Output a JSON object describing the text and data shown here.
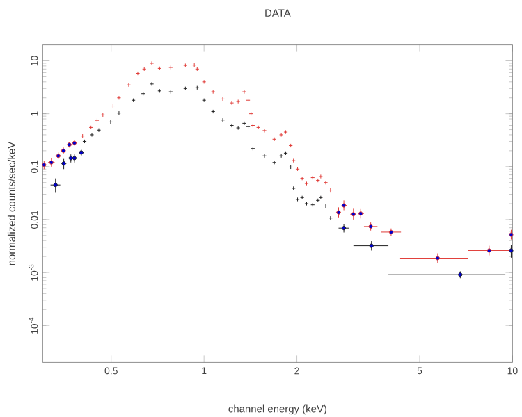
{
  "chart_data": {
    "type": "scatter",
    "title": "DATA",
    "xlabel": "channel energy (keV)",
    "ylabel": "normalized counts/sec/keV",
    "log": "xy",
    "xlim": [
      0.3,
      10
    ],
    "ylim": [
      2e-05,
      20
    ],
    "xticks": [
      0.5,
      1,
      2,
      5,
      10
    ],
    "yticks": [
      {
        "value": 0.0001,
        "label": "10$^{-4}$"
      },
      {
        "value": 0.001,
        "label": "10$^{-3}$"
      },
      0.01,
      0.1,
      1,
      10
    ],
    "marker": "cross",
    "grid": false,
    "legend": false,
    "series": [
      {
        "color": "#e03a36",
        "x": [
          0.303,
          0.32,
          0.337,
          0.35,
          0.366,
          0.38,
          0.404,
          0.43,
          0.45,
          0.47,
          0.507,
          0.53,
          0.57,
          0.61,
          0.64,
          0.677,
          0.718,
          0.78,
          0.87,
          0.93,
          0.95,
          1.0,
          1.07,
          1.15,
          1.23,
          1.29,
          1.35,
          1.39,
          1.42,
          1.44,
          1.5,
          1.57,
          1.69,
          1.78,
          1.84,
          1.91,
          1.95,
          2.01,
          2.08,
          2.15,
          2.25,
          2.34,
          2.39,
          2.48,
          2.57,
          2.73,
          2.84,
          3.05,
          3.22,
          3.47,
          4.04,
          5.72,
          8.4,
          9.9
        ],
        "values": [
          0.108,
          0.12,
          0.16,
          0.2,
          0.26,
          0.28,
          0.38,
          0.55,
          0.75,
          0.95,
          1.4,
          2.0,
          3.5,
          5.8,
          7.0,
          9.0,
          7.2,
          7.5,
          8.2,
          8.3,
          7.0,
          4.0,
          2.6,
          1.9,
          1.6,
          1.7,
          2.6,
          1.8,
          1.0,
          0.6,
          0.55,
          0.48,
          0.33,
          0.4,
          0.45,
          0.25,
          0.13,
          0.09,
          0.06,
          0.048,
          0.062,
          0.055,
          0.065,
          0.05,
          0.036,
          0.0136,
          0.0185,
          0.0126,
          0.013,
          0.0074,
          0.0058,
          0.00186,
          0.0026,
          0.0052
        ],
        "xerrors": [
          [
            0.3,
            0.307
          ],
          [
            0.312,
            0.328
          ],
          [
            0.33,
            0.344
          ],
          [
            0.343,
            0.357
          ],
          [
            0.359,
            0.373
          ],
          [
            0.373,
            0.387
          ],
          null,
          null,
          null,
          null,
          null,
          null,
          null,
          null,
          null,
          null,
          null,
          null,
          null,
          null,
          null,
          null,
          null,
          null,
          null,
          null,
          null,
          null,
          null,
          null,
          null,
          null,
          null,
          null,
          null,
          null,
          null,
          null,
          null,
          null,
          null,
          null,
          null,
          null,
          null,
          [
            2.68,
            2.78
          ],
          [
            2.79,
            2.9
          ],
          [
            2.98,
            3.1
          ],
          [
            3.16,
            3.3
          ],
          [
            3.3,
            3.65
          ],
          [
            3.75,
            4.35
          ],
          [
            4.3,
            7.17
          ],
          [
            7.17,
            9.9
          ],
          [
            9.8,
            10
          ]
        ],
        "errors": [
          [
            0.09,
            0.13
          ],
          [
            0.1,
            0.145
          ],
          [
            0.14,
            0.185
          ],
          [
            0.175,
            0.23
          ],
          [
            0.23,
            0.29
          ],
          [
            0.25,
            0.31
          ],
          null,
          null,
          null,
          null,
          null,
          null,
          null,
          null,
          null,
          null,
          null,
          null,
          null,
          null,
          null,
          null,
          null,
          null,
          null,
          null,
          null,
          null,
          null,
          null,
          null,
          null,
          null,
          null,
          null,
          null,
          null,
          null,
          null,
          null,
          null,
          null,
          null,
          null,
          null,
          [
            0.011,
            0.017
          ],
          [
            0.015,
            0.023
          ],
          [
            0.01,
            0.016
          ],
          [
            0.0105,
            0.0158
          ],
          [
            0.0062,
            0.0088
          ],
          [
            0.0049,
            0.0068
          ],
          [
            0.0015,
            0.0023
          ],
          [
            0.0021,
            0.0032
          ],
          [
            0.0042,
            0.0064
          ]
        ]
      },
      {
        "color": "#202020",
        "x": [
          0.33,
          0.351,
          0.37,
          0.38,
          0.4,
          0.41,
          0.433,
          0.456,
          0.498,
          0.53,
          0.59,
          0.635,
          0.677,
          0.718,
          0.78,
          0.87,
          0.95,
          1.0,
          1.07,
          1.15,
          1.23,
          1.29,
          1.35,
          1.39,
          1.44,
          1.57,
          1.69,
          1.78,
          1.84,
          1.91,
          1.95,
          2.01,
          2.08,
          2.15,
          2.25,
          2.34,
          2.39,
          2.48,
          2.57,
          2.84,
          3.49,
          6.77,
          9.9
        ],
        "values": [
          0.045,
          0.115,
          0.145,
          0.145,
          0.185,
          0.3,
          0.4,
          0.49,
          0.7,
          1.03,
          1.8,
          2.4,
          3.65,
          2.7,
          2.6,
          3.0,
          3.1,
          1.8,
          1.1,
          0.76,
          0.6,
          0.54,
          0.66,
          0.57,
          0.22,
          0.16,
          0.12,
          0.16,
          0.18,
          0.098,
          0.039,
          0.024,
          0.026,
          0.02,
          0.019,
          0.023,
          0.026,
          0.018,
          0.0107,
          0.0069,
          0.0032,
          0.00091,
          0.0026
        ],
        "xerrors": [
          [
            0.318,
            0.342
          ],
          [
            0.344,
            0.358
          ],
          [
            0.366,
            0.374
          ],
          [
            0.377,
            0.384
          ],
          [
            0.393,
            0.407
          ],
          null,
          null,
          null,
          null,
          null,
          null,
          null,
          null,
          null,
          null,
          null,
          null,
          null,
          null,
          null,
          null,
          null,
          null,
          null,
          null,
          null,
          null,
          null,
          null,
          null,
          null,
          null,
          null,
          null,
          null,
          null,
          null,
          null,
          null,
          [
            2.73,
            2.96
          ],
          [
            3.05,
            3.96
          ],
          [
            3.96,
            9.48
          ],
          [
            9.8,
            10
          ]
        ],
        "errors": [
          [
            0.033,
            0.06
          ],
          [
            0.09,
            0.14
          ],
          [
            0.12,
            0.17
          ],
          [
            0.12,
            0.17
          ],
          [
            0.16,
            0.21
          ],
          null,
          null,
          null,
          null,
          null,
          null,
          null,
          null,
          null,
          null,
          null,
          null,
          null,
          null,
          null,
          null,
          null,
          null,
          null,
          null,
          null,
          null,
          null,
          null,
          null,
          null,
          null,
          null,
          null,
          null,
          null,
          null,
          null,
          null,
          [
            0.0057,
            0.0082
          ],
          [
            0.0026,
            0.0039
          ],
          [
            0.00078,
            0.00105
          ],
          [
            0.0019,
            0.0033
          ]
        ]
      }
    ]
  }
}
